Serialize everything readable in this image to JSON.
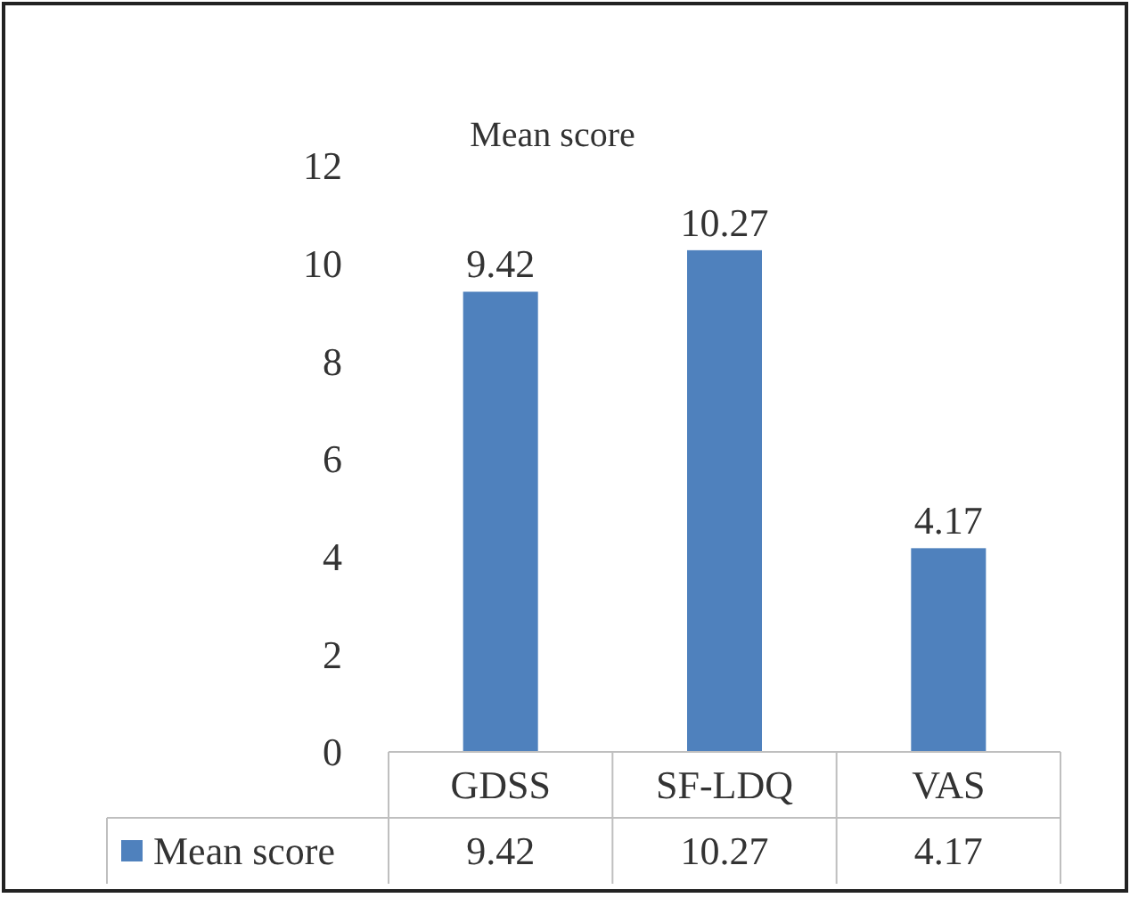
{
  "chart_data": {
    "type": "bar",
    "title": "Mean score",
    "categories": [
      "GDSS",
      "SF-LDQ",
      "VAS"
    ],
    "series": [
      {
        "name": "Mean score",
        "color": "#4f81bd",
        "values": [
          9.42,
          10.27,
          4.17
        ],
        "value_labels": [
          "9.42",
          "10.27",
          "4.17"
        ]
      }
    ],
    "annotations": [
      {
        "text": "9.42",
        "x": "GDSS",
        "y": 9.42
      },
      {
        "text": "10.27",
        "x": "SF-LDQ",
        "y": 10.27
      },
      {
        "text": "4.17",
        "x": "VAS",
        "y": 4.17
      }
    ],
    "ylim": [
      0,
      12
    ],
    "yticks": [
      0,
      2,
      4,
      6,
      8,
      10,
      12
    ],
    "grid": false,
    "data_labels": true,
    "legend": "bottom"
  }
}
